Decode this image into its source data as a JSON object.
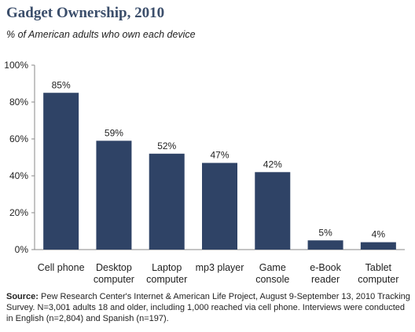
{
  "chart_data": {
    "type": "bar",
    "title": "Gadget Ownership, 2010",
    "subtitle": "% of American adults who own each device",
    "categories": [
      [
        "Cell phone"
      ],
      [
        "Desktop",
        "computer"
      ],
      [
        "Laptop",
        "computer"
      ],
      [
        "mp3 player"
      ],
      [
        "Game",
        "console"
      ],
      [
        "e-Book",
        "reader"
      ],
      [
        "Tablet",
        "computer"
      ]
    ],
    "values": [
      85,
      59,
      52,
      47,
      42,
      5,
      4
    ],
    "data_labels": [
      "85%",
      "59%",
      "52%",
      "47%",
      "42%",
      "5%",
      "4%"
    ],
    "y_ticks": [
      0,
      20,
      40,
      60,
      80,
      100
    ],
    "y_tick_labels": [
      "0%",
      "20%",
      "40%",
      "60%",
      "80%",
      "100%"
    ],
    "ylim": [
      0,
      100
    ],
    "grid": false,
    "bar_color": "#2f4366",
    "title_color": "#3b4e6b"
  },
  "source": {
    "label": "Source:",
    "text": "Pew Research Center's Internet & American Life Project, August 9-September 13, 2010 Tracking Survey. N=3,001 adults 18 and older, including 1,000 reached via cell phone. Interviews were conducted in English (n=2,804) and Spanish (n=197)."
  }
}
